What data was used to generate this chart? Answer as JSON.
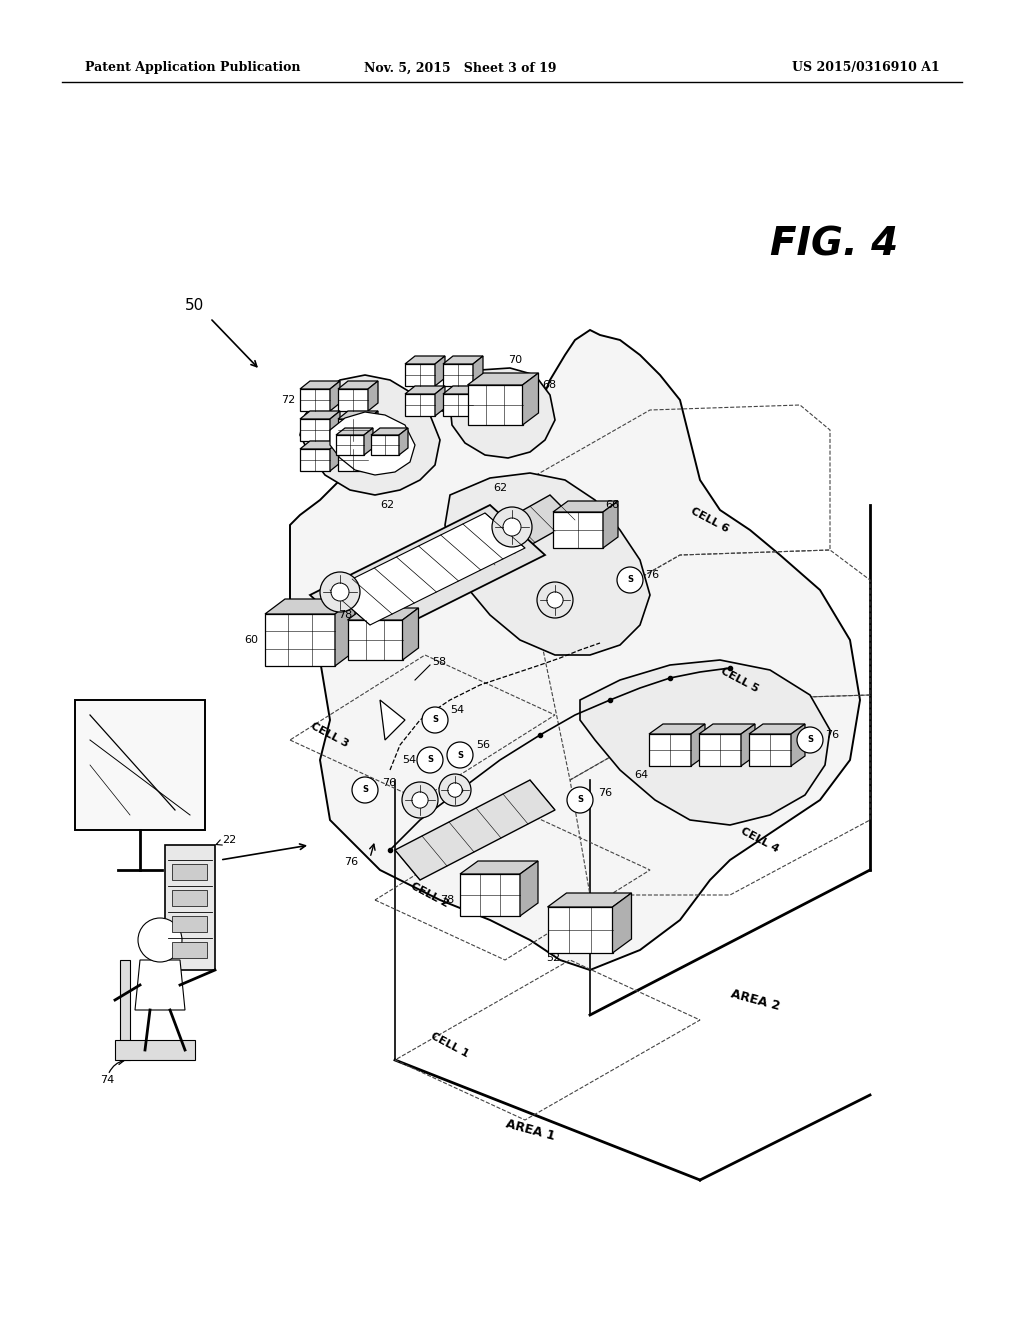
{
  "bg_color": "#ffffff",
  "text_color": "#000000",
  "header_left": "Patent Application Publication",
  "header_mid": "Nov. 5, 2015   Sheet 3 of 19",
  "header_right": "US 2015/0316910 A1",
  "fig_label": "FIG. 4",
  "line_color": "#000000",
  "fig_width": 10.24,
  "fig_height": 13.2,
  "dpi": 100
}
